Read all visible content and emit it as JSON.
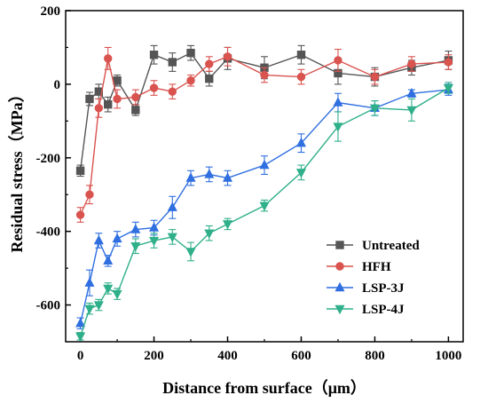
{
  "chart_data": {
    "type": "line",
    "xlabel": "Distance from surface（μm）",
    "ylabel": "Residual stress（MPa）",
    "xlim": [
      -40,
      1040
    ],
    "ylim": [
      -700,
      200
    ],
    "xticks": [
      0,
      200,
      400,
      600,
      800,
      1000
    ],
    "yticks": [
      -600,
      -400,
      -200,
      0,
      200
    ],
    "grid": false,
    "legend_position": "bottom-right",
    "series": [
      {
        "name": "Untreated",
        "color": "#555555",
        "marker": "square",
        "x": [
          0,
          25,
          50,
          75,
          100,
          150,
          200,
          250,
          300,
          350,
          400,
          500,
          600,
          700,
          800,
          900,
          1000
        ],
        "y": [
          -235,
          -40,
          -20,
          -55,
          10,
          -70,
          80,
          60,
          85,
          15,
          70,
          45,
          80,
          30,
          20,
          45,
          65
        ],
        "err": [
          15,
          18,
          20,
          20,
          15,
          15,
          25,
          25,
          20,
          20,
          30,
          30,
          25,
          30,
          25,
          20,
          25
        ]
      },
      {
        "name": "HFH",
        "color": "#d9534f",
        "marker": "circle",
        "x": [
          0,
          25,
          50,
          75,
          100,
          150,
          200,
          250,
          300,
          350,
          400,
          500,
          600,
          700,
          800,
          900,
          1000
        ],
        "y": [
          -355,
          -300,
          -65,
          70,
          -40,
          -35,
          -10,
          -20,
          10,
          55,
          75,
          25,
          20,
          65,
          20,
          55,
          60
        ],
        "err": [
          20,
          25,
          25,
          30,
          25,
          20,
          20,
          20,
          15,
          20,
          25,
          20,
          20,
          30,
          20,
          20,
          20
        ]
      },
      {
        "name": "LSP-3J",
        "color": "#2f6fe0",
        "marker": "triangle-up",
        "x": [
          0,
          25,
          50,
          75,
          100,
          150,
          200,
          250,
          300,
          350,
          400,
          500,
          600,
          700,
          800,
          900,
          1000
        ],
        "y": [
          -650,
          -540,
          -425,
          -480,
          -420,
          -395,
          -390,
          -335,
          -255,
          -245,
          -255,
          -220,
          -160,
          -50,
          -65,
          -25,
          -15
        ],
        "err": [
          15,
          35,
          20,
          15,
          20,
          20,
          20,
          30,
          20,
          20,
          20,
          25,
          25,
          25,
          20,
          10,
          15
        ]
      },
      {
        "name": "LSP-4J",
        "color": "#2fb08a",
        "marker": "triangle-down",
        "x": [
          0,
          25,
          50,
          75,
          100,
          150,
          200,
          250,
          300,
          350,
          400,
          500,
          600,
          700,
          800,
          900,
          1000
        ],
        "y": [
          -685,
          -610,
          -600,
          -555,
          -570,
          -440,
          -425,
          -415,
          -455,
          -405,
          -380,
          -330,
          -240,
          -115,
          -65,
          -70,
          -10
        ],
        "err": [
          10,
          15,
          15,
          15,
          15,
          20,
          20,
          20,
          25,
          20,
          15,
          15,
          20,
          40,
          20,
          30,
          15
        ]
      }
    ]
  }
}
